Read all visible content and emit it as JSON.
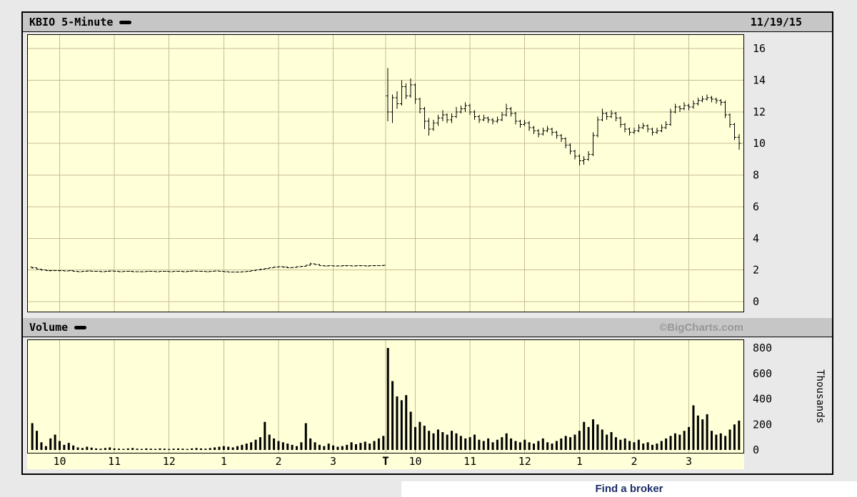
{
  "widget": {
    "header": {
      "title": "KBIO 5-Minute",
      "date": "11/19/15"
    },
    "volume_header": {
      "title": "Volume",
      "watermark": "©BigCharts.com"
    }
  },
  "footer": {
    "link_label": "Find a broker"
  },
  "colors": {
    "plot_bg": "#ffffd8",
    "grid": "#c8bd92",
    "bar": "#000000",
    "header_bg": "#c6c6c6",
    "page_bg": "#e9e9e9",
    "watermark": "#989898",
    "link": "#1c2d69"
  },
  "icons": {
    "series_dash": "black-rounded-dash"
  },
  "chart_data": [
    {
      "type": "ohlc-bar",
      "title": "KBIO 5-Minute",
      "date": "11/19/15",
      "ylabel": "",
      "ylim": [
        0,
        16
      ],
      "yticks": [
        0,
        2,
        4,
        6,
        8,
        10,
        12,
        14,
        16
      ],
      "minutes_per_bar": 5,
      "session_break_bar": 78,
      "xticks": [
        {
          "bar": 6,
          "label": "10"
        },
        {
          "bar": 18,
          "label": "11"
        },
        {
          "bar": 30,
          "label": "12"
        },
        {
          "bar": 42,
          "label": "1"
        },
        {
          "bar": 54,
          "label": "2"
        },
        {
          "bar": 66,
          "label": "3"
        },
        {
          "bar": 78,
          "label": "T",
          "bold": true
        },
        {
          "bar": 84,
          "label": "10"
        },
        {
          "bar": 96,
          "label": "11"
        },
        {
          "bar": 108,
          "label": "12"
        },
        {
          "bar": 120,
          "label": "1"
        },
        {
          "bar": 132,
          "label": "2"
        },
        {
          "bar": 144,
          "label": "3"
        }
      ],
      "bars_ohlc": [
        [
          2.18,
          2.2,
          2.08,
          2.15
        ],
        [
          2.15,
          2.16,
          2.02,
          2.05
        ],
        [
          2.05,
          2.08,
          1.97,
          2.0
        ],
        [
          2.0,
          2.02,
          1.94,
          1.97
        ],
        [
          1.97,
          1.99,
          1.92,
          1.95
        ],
        [
          1.95,
          1.99,
          1.93,
          1.97
        ],
        [
          1.97,
          1.98,
          1.92,
          1.95
        ],
        [
          1.95,
          1.97,
          1.91,
          1.93
        ],
        [
          1.93,
          1.97,
          1.92,
          1.95
        ],
        [
          1.95,
          1.96,
          1.9,
          1.92
        ],
        [
          1.92,
          1.94,
          1.88,
          1.9
        ],
        [
          1.9,
          1.94,
          1.89,
          1.92
        ],
        [
          1.92,
          1.95,
          1.9,
          1.93
        ],
        [
          1.93,
          1.94,
          1.89,
          1.91
        ],
        [
          1.91,
          1.94,
          1.9,
          1.92
        ],
        [
          1.92,
          1.93,
          1.88,
          1.9
        ],
        [
          1.9,
          1.94,
          1.89,
          1.92
        ],
        [
          1.92,
          1.95,
          1.9,
          1.93
        ],
        [
          1.93,
          1.94,
          1.9,
          1.92
        ],
        [
          1.92,
          1.93,
          1.88,
          1.9
        ],
        [
          1.9,
          1.93,
          1.89,
          1.91
        ],
        [
          1.91,
          1.94,
          1.9,
          1.92
        ],
        [
          1.92,
          1.93,
          1.88,
          1.9
        ],
        [
          1.9,
          1.91,
          1.87,
          1.89
        ],
        [
          1.89,
          1.92,
          1.88,
          1.9
        ],
        [
          1.9,
          1.94,
          1.89,
          1.92
        ],
        [
          1.92,
          1.93,
          1.89,
          1.91
        ],
        [
          1.91,
          1.92,
          1.88,
          1.9
        ],
        [
          1.9,
          1.94,
          1.89,
          1.92
        ],
        [
          1.92,
          1.93,
          1.89,
          1.91
        ],
        [
          1.91,
          1.92,
          1.88,
          1.9
        ],
        [
          1.9,
          1.93,
          1.89,
          1.91
        ],
        [
          1.91,
          1.94,
          1.9,
          1.92
        ],
        [
          1.92,
          1.93,
          1.88,
          1.9
        ],
        [
          1.9,
          1.94,
          1.89,
          1.92
        ],
        [
          1.92,
          1.95,
          1.91,
          1.93
        ],
        [
          1.93,
          1.94,
          1.9,
          1.92
        ],
        [
          1.92,
          1.93,
          1.89,
          1.91
        ],
        [
          1.91,
          1.92,
          1.88,
          1.9
        ],
        [
          1.9,
          1.94,
          1.89,
          1.92
        ],
        [
          1.92,
          1.95,
          1.91,
          1.93
        ],
        [
          1.93,
          1.94,
          1.9,
          1.92
        ],
        [
          1.92,
          1.93,
          1.87,
          1.9
        ],
        [
          1.9,
          1.91,
          1.86,
          1.88
        ],
        [
          1.88,
          1.9,
          1.85,
          1.87
        ],
        [
          1.87,
          1.9,
          1.85,
          1.88
        ],
        [
          1.88,
          1.92,
          1.87,
          1.9
        ],
        [
          1.9,
          1.94,
          1.89,
          1.92
        ],
        [
          1.92,
          1.97,
          1.91,
          1.95
        ],
        [
          1.95,
          2.02,
          1.94,
          2.0
        ],
        [
          2.0,
          2.07,
          1.99,
          2.05
        ],
        [
          2.05,
          2.12,
          2.04,
          2.1
        ],
        [
          2.1,
          2.17,
          2.09,
          2.15
        ],
        [
          2.15,
          2.2,
          2.13,
          2.18
        ],
        [
          2.18,
          2.23,
          2.16,
          2.2
        ],
        [
          2.2,
          2.22,
          2.15,
          2.18
        ],
        [
          2.18,
          2.2,
          2.12,
          2.15
        ],
        [
          2.15,
          2.19,
          2.13,
          2.17
        ],
        [
          2.17,
          2.22,
          2.15,
          2.2
        ],
        [
          2.2,
          2.25,
          2.18,
          2.22
        ],
        [
          2.22,
          2.32,
          2.2,
          2.3
        ],
        [
          2.3,
          2.45,
          2.28,
          2.4
        ],
        [
          2.4,
          2.42,
          2.32,
          2.35
        ],
        [
          2.35,
          2.37,
          2.25,
          2.28
        ],
        [
          2.28,
          2.3,
          2.22,
          2.25
        ],
        [
          2.25,
          2.29,
          2.23,
          2.27
        ],
        [
          2.27,
          2.28,
          2.22,
          2.25
        ],
        [
          2.25,
          2.29,
          2.23,
          2.26
        ],
        [
          2.26,
          2.3,
          2.24,
          2.28
        ],
        [
          2.28,
          2.29,
          2.24,
          2.27
        ],
        [
          2.27,
          2.28,
          2.23,
          2.26
        ],
        [
          2.26,
          2.3,
          2.24,
          2.28
        ],
        [
          2.28,
          2.29,
          2.24,
          2.27
        ],
        [
          2.27,
          2.28,
          2.23,
          2.26
        ],
        [
          2.26,
          2.3,
          2.24,
          2.28
        ],
        [
          2.28,
          2.29,
          2.24,
          2.27
        ],
        [
          2.27,
          2.3,
          2.25,
          2.28
        ],
        [
          2.28,
          2.32,
          2.26,
          2.3
        ],
        [
          13.0,
          14.75,
          11.4,
          12.0
        ],
        [
          12.0,
          13.1,
          11.3,
          12.9
        ],
        [
          12.9,
          13.3,
          12.2,
          12.5
        ],
        [
          12.5,
          14.0,
          12.4,
          13.6
        ],
        [
          13.6,
          13.8,
          12.8,
          13.0
        ],
        [
          13.0,
          14.1,
          12.9,
          13.7
        ],
        [
          13.7,
          13.8,
          12.5,
          12.8
        ],
        [
          12.8,
          12.9,
          11.9,
          12.2
        ],
        [
          12.2,
          12.3,
          10.9,
          11.4
        ],
        [
          11.4,
          11.6,
          10.5,
          10.9
        ],
        [
          10.9,
          11.5,
          10.8,
          11.3
        ],
        [
          11.3,
          11.8,
          11.1,
          11.6
        ],
        [
          11.6,
          12.1,
          11.4,
          11.8
        ],
        [
          11.8,
          11.9,
          11.3,
          11.5
        ],
        [
          11.5,
          11.9,
          11.3,
          11.7
        ],
        [
          11.7,
          12.3,
          11.6,
          12.0
        ],
        [
          12.0,
          12.4,
          11.9,
          12.2
        ],
        [
          12.2,
          12.6,
          12.0,
          12.4
        ],
        [
          12.4,
          12.5,
          11.8,
          12.0
        ],
        [
          12.0,
          12.1,
          11.5,
          11.7
        ],
        [
          11.7,
          11.8,
          11.3,
          11.5
        ],
        [
          11.5,
          11.8,
          11.4,
          11.6
        ],
        [
          11.6,
          11.7,
          11.3,
          11.5
        ],
        [
          11.5,
          11.6,
          11.2,
          11.4
        ],
        [
          11.4,
          11.7,
          11.3,
          11.5
        ],
        [
          11.5,
          12.0,
          11.4,
          11.8
        ],
        [
          11.8,
          12.5,
          11.7,
          12.2
        ],
        [
          12.2,
          12.3,
          11.7,
          11.9
        ],
        [
          11.9,
          12.0,
          11.2,
          11.4
        ],
        [
          11.4,
          11.5,
          11.0,
          11.2
        ],
        [
          11.2,
          11.5,
          11.1,
          11.3
        ],
        [
          11.3,
          11.4,
          10.8,
          11.0
        ],
        [
          11.0,
          11.1,
          10.6,
          10.8
        ],
        [
          10.8,
          10.9,
          10.4,
          10.6
        ],
        [
          10.6,
          11.0,
          10.5,
          10.8
        ],
        [
          10.8,
          11.1,
          10.7,
          10.9
        ],
        [
          10.9,
          11.0,
          10.5,
          10.7
        ],
        [
          10.7,
          10.8,
          10.3,
          10.5
        ],
        [
          10.5,
          10.6,
          10.1,
          10.3
        ],
        [
          10.3,
          10.4,
          9.7,
          9.9
        ],
        [
          9.9,
          10.0,
          9.3,
          9.5
        ],
        [
          9.5,
          9.6,
          9.0,
          9.2
        ],
        [
          9.2,
          9.3,
          8.6,
          8.9
        ],
        [
          8.9,
          9.2,
          8.65,
          9.0
        ],
        [
          9.0,
          9.5,
          8.9,
          9.3
        ],
        [
          9.3,
          10.7,
          9.2,
          10.5
        ],
        [
          10.5,
          11.7,
          10.4,
          11.5
        ],
        [
          11.5,
          12.2,
          11.4,
          11.9
        ],
        [
          11.9,
          12.0,
          11.5,
          11.7
        ],
        [
          11.7,
          12.1,
          11.6,
          11.9
        ],
        [
          11.9,
          12.0,
          11.4,
          11.6
        ],
        [
          11.6,
          11.7,
          11.0,
          11.2
        ],
        [
          11.2,
          11.3,
          10.7,
          10.9
        ],
        [
          10.9,
          11.0,
          10.5,
          10.7
        ],
        [
          10.7,
          11.0,
          10.6,
          10.8
        ],
        [
          10.8,
          11.2,
          10.7,
          11.0
        ],
        [
          11.0,
          11.3,
          10.9,
          11.1
        ],
        [
          11.1,
          11.2,
          10.7,
          10.9
        ],
        [
          10.9,
          11.0,
          10.5,
          10.7
        ],
        [
          10.7,
          11.0,
          10.6,
          10.8
        ],
        [
          10.8,
          11.2,
          10.7,
          11.0
        ],
        [
          11.0,
          11.4,
          10.9,
          11.2
        ],
        [
          11.2,
          12.2,
          11.1,
          12.0
        ],
        [
          12.0,
          12.5,
          11.9,
          12.3
        ],
        [
          12.3,
          12.4,
          12.0,
          12.2
        ],
        [
          12.2,
          12.6,
          12.1,
          12.4
        ],
        [
          12.4,
          12.5,
          12.1,
          12.3
        ],
        [
          12.3,
          12.7,
          12.2,
          12.5
        ],
        [
          12.5,
          12.9,
          12.4,
          12.7
        ],
        [
          12.7,
          13.0,
          12.6,
          12.8
        ],
        [
          12.8,
          13.1,
          12.7,
          12.9
        ],
        [
          12.9,
          13.0,
          12.6,
          12.8
        ],
        [
          12.8,
          12.9,
          12.5,
          12.7
        ],
        [
          12.7,
          12.8,
          12.4,
          12.6
        ],
        [
          12.6,
          12.7,
          11.6,
          11.8
        ],
        [
          11.8,
          11.9,
          11.0,
          11.2
        ],
        [
          11.2,
          11.3,
          10.2,
          10.4
        ],
        [
          10.4,
          10.6,
          9.6,
          10.0
        ]
      ]
    },
    {
      "type": "bar",
      "title": "Volume",
      "ylabel": "Thousands",
      "ylim": [
        0,
        800
      ],
      "yticks": [
        0,
        200,
        400,
        600,
        800
      ],
      "values": [
        210,
        150,
        60,
        30,
        90,
        120,
        70,
        40,
        55,
        35,
        20,
        15,
        25,
        18,
        12,
        10,
        15,
        20,
        12,
        10,
        8,
        12,
        15,
        10,
        8,
        12,
        10,
        8,
        12,
        10,
        8,
        10,
        12,
        10,
        8,
        12,
        15,
        12,
        10,
        15,
        20,
        25,
        30,
        25,
        20,
        30,
        40,
        50,
        60,
        80,
        100,
        220,
        120,
        90,
        70,
        60,
        50,
        40,
        30,
        60,
        210,
        90,
        60,
        40,
        30,
        50,
        35,
        25,
        30,
        40,
        60,
        45,
        55,
        65,
        50,
        70,
        90,
        110,
        800,
        540,
        420,
        390,
        430,
        300,
        180,
        220,
        190,
        150,
        130,
        160,
        140,
        120,
        150,
        130,
        110,
        90,
        100,
        120,
        80,
        70,
        90,
        60,
        80,
        100,
        130,
        90,
        70,
        60,
        80,
        60,
        50,
        70,
        90,
        60,
        50,
        70,
        90,
        110,
        100,
        120,
        150,
        220,
        180,
        240,
        200,
        160,
        120,
        140,
        100,
        80,
        90,
        70,
        60,
        80,
        50,
        60,
        40,
        50,
        70,
        90,
        110,
        130,
        120,
        150,
        180,
        350,
        270,
        240,
        280,
        150,
        120,
        130,
        110,
        160,
        200,
        230
      ]
    }
  ]
}
